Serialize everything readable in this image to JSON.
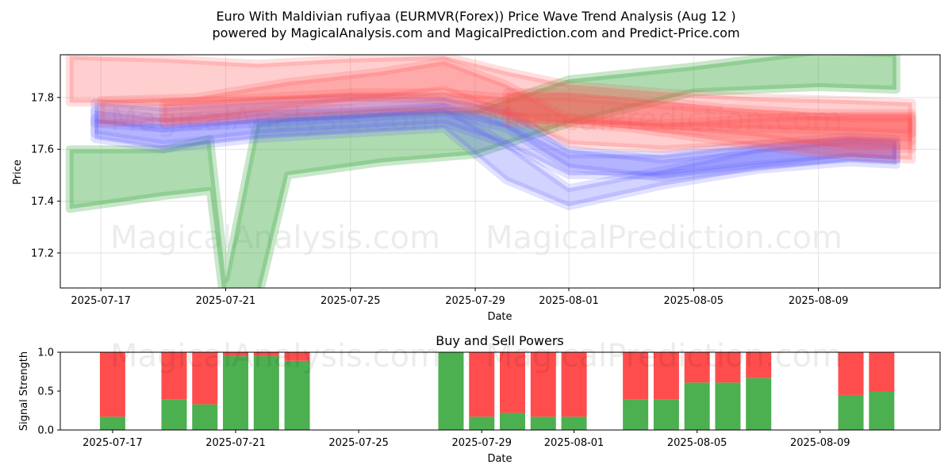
{
  "chart_data": [
    {
      "type": "area",
      "title_line1": "Euro With Maldivian rufiyaa (EURMVR(Forex)) Price Wave Trend Analysis (Aug 12 )",
      "title_line2": "powered by MagicalAnalysis.com and MagicalPrediction.com and Predict-Price.com",
      "xlabel": "Date",
      "ylabel": "Price",
      "xlim": [
        "2025-07-15.7",
        "2025-08-12.9"
      ],
      "ylim": [
        17.065,
        17.965
      ],
      "x_ticks": [
        "2025-07-17",
        "2025-07-21",
        "2025-07-25",
        "2025-07-29",
        "2025-08-01",
        "2025-08-05",
        "2025-08-09"
      ],
      "y_ticks": [
        17.2,
        17.4,
        17.6,
        17.8
      ],
      "watermarks": [
        "MagicalAnalysis.com",
        "MagicalPrediction.com"
      ],
      "series": [
        {
          "name": "green-wave",
          "color": "#4caf50",
          "x": [
            "2025-07-16",
            "2025-07-19",
            "2025-07-20.5",
            "2025-07-21",
            "2025-07-22",
            "2025-07-23",
            "2025-07-26",
            "2025-07-29",
            "2025-08-01",
            "2025-08-05",
            "2025-08-09",
            "2025-08-11.5"
          ],
          "upper": [
            17.6,
            17.6,
            17.64,
            17.1,
            17.7,
            17.72,
            17.74,
            17.75,
            17.87,
            17.92,
            17.98,
            17.97
          ],
          "lower": [
            17.37,
            17.42,
            17.44,
            16.95,
            17.0,
            17.5,
            17.55,
            17.58,
            17.7,
            17.82,
            17.84,
            17.83
          ]
        },
        {
          "name": "blue-wave-1",
          "color": "#6060ff",
          "x": [
            "2025-07-16.8",
            "2025-07-19",
            "2025-07-22",
            "2025-07-25",
            "2025-07-28",
            "2025-07-30",
            "2025-08-01",
            "2025-08-04",
            "2025-08-07",
            "2025-08-10",
            "2025-08-11.5"
          ],
          "upper": [
            17.75,
            17.72,
            17.75,
            17.76,
            17.78,
            17.7,
            17.58,
            17.58,
            17.62,
            17.65,
            17.64
          ],
          "lower": [
            17.66,
            17.62,
            17.66,
            17.68,
            17.7,
            17.62,
            17.5,
            17.5,
            17.54,
            17.57,
            17.56
          ]
        },
        {
          "name": "blue-wave-2",
          "color": "#6060ff",
          "x": [
            "2025-07-16.8",
            "2025-07-19",
            "2025-07-22",
            "2025-07-25",
            "2025-07-28",
            "2025-07-30",
            "2025-08-01",
            "2025-08-04",
            "2025-08-07",
            "2025-08-10",
            "2025-08-11.5"
          ],
          "upper": [
            17.72,
            17.68,
            17.72,
            17.73,
            17.76,
            17.62,
            17.45,
            17.52,
            17.6,
            17.63,
            17.62
          ],
          "lower": [
            17.64,
            17.6,
            17.64,
            17.66,
            17.68,
            17.48,
            17.38,
            17.46,
            17.52,
            17.55,
            17.54
          ]
        },
        {
          "name": "blue-wave-3",
          "color": "#6060ff",
          "x": [
            "2025-07-16.8",
            "2025-07-19",
            "2025-07-22",
            "2025-07-25",
            "2025-07-28",
            "2025-07-30",
            "2025-08-01",
            "2025-08-04",
            "2025-08-07",
            "2025-08-10",
            "2025-08-11.5"
          ],
          "upper": [
            17.78,
            17.76,
            17.78,
            17.8,
            17.8,
            17.75,
            17.6,
            17.56,
            17.6,
            17.64,
            17.63
          ],
          "lower": [
            17.7,
            17.68,
            17.7,
            17.72,
            17.74,
            17.68,
            17.53,
            17.49,
            17.53,
            17.57,
            17.56
          ]
        },
        {
          "name": "red-wave-1",
          "color": "#ff5050",
          "x": [
            "2025-07-16",
            "2025-07-19",
            "2025-07-22",
            "2025-07-25",
            "2025-07-28",
            "2025-07-30",
            "2025-08-01",
            "2025-08-04",
            "2025-08-07",
            "2025-08-10",
            "2025-08-12"
          ],
          "upper": [
            17.96,
            17.95,
            17.93,
            17.95,
            17.96,
            17.9,
            17.85,
            17.82,
            17.8,
            17.79,
            17.78
          ],
          "lower": [
            17.78,
            17.78,
            17.79,
            17.8,
            17.79,
            17.73,
            17.7,
            17.69,
            17.68,
            17.67,
            17.66
          ]
        },
        {
          "name": "red-wave-2",
          "color": "#ff5050",
          "x": [
            "2025-07-17",
            "2025-07-20",
            "2025-07-23",
            "2025-07-26",
            "2025-07-28",
            "2025-07-30",
            "2025-08-01",
            "2025-08-04",
            "2025-08-07",
            "2025-08-10",
            "2025-08-12"
          ],
          "upper": [
            17.79,
            17.8,
            17.86,
            17.9,
            17.94,
            17.85,
            17.72,
            17.7,
            17.72,
            17.73,
            17.73
          ],
          "lower": [
            17.7,
            17.71,
            17.76,
            17.8,
            17.83,
            17.74,
            17.62,
            17.6,
            17.62,
            17.63,
            17.63
          ]
        },
        {
          "name": "red-wave-3",
          "color": "#ff5050",
          "x": [
            "2025-07-19",
            "2025-07-22",
            "2025-07-25",
            "2025-07-28",
            "2025-07-30",
            "2025-08-01",
            "2025-08-04",
            "2025-08-07",
            "2025-08-10",
            "2025-08-12"
          ],
          "upper": [
            17.78,
            17.8,
            17.82,
            17.82,
            17.8,
            17.8,
            17.77,
            17.74,
            17.72,
            17.72
          ],
          "lower": [
            17.7,
            17.72,
            17.74,
            17.75,
            17.73,
            17.72,
            17.68,
            17.65,
            17.6,
            17.6
          ]
        },
        {
          "name": "red-wave-4",
          "color": "#ff5050",
          "x": [
            "2025-07-30",
            "2025-08-01",
            "2025-08-03",
            "2025-08-06",
            "2025-08-09",
            "2025-08-12"
          ],
          "upper": [
            17.82,
            17.82,
            17.8,
            17.76,
            17.74,
            17.74
          ],
          "lower": [
            17.7,
            17.7,
            17.68,
            17.63,
            17.58,
            17.56
          ]
        }
      ]
    },
    {
      "type": "bar",
      "title": "Buy and Sell Powers",
      "xlabel": "Date",
      "ylabel": "Signal Strength",
      "ylim": [
        0,
        1
      ],
      "y_ticks": [
        "0.0",
        "0.5",
        "1.0"
      ],
      "x_ticks": [
        "2025-07-17",
        "2025-07-21",
        "2025-07-25",
        "2025-07-29",
        "2025-08-01",
        "2025-08-05",
        "2025-08-09"
      ],
      "buy_color": "#4caf50",
      "sell_color": "#ff4d4d",
      "categories": [
        "2025-07-17",
        "2025-07-19",
        "2025-07-20",
        "2025-07-21",
        "2025-07-22",
        "2025-07-23",
        "2025-07-28",
        "2025-07-29",
        "2025-07-30",
        "2025-07-31",
        "2025-08-01",
        "2025-08-03",
        "2025-08-04",
        "2025-08-05",
        "2025-08-06",
        "2025-08-07",
        "2025-08-10",
        "2025-08-11"
      ],
      "series": [
        {
          "name": "Buy",
          "values": [
            0.17,
            0.39,
            0.33,
            0.95,
            0.95,
            0.89,
            1.0,
            0.17,
            0.22,
            0.17,
            0.17,
            0.39,
            0.39,
            0.61,
            0.61,
            0.67,
            0.45,
            0.5
          ]
        },
        {
          "name": "Sell",
          "values": [
            0.83,
            0.61,
            0.67,
            0.05,
            0.05,
            0.11,
            0.0,
            0.83,
            0.78,
            0.83,
            0.83,
            0.61,
            0.61,
            0.39,
            0.39,
            0.33,
            0.55,
            0.5
          ]
        }
      ]
    }
  ]
}
